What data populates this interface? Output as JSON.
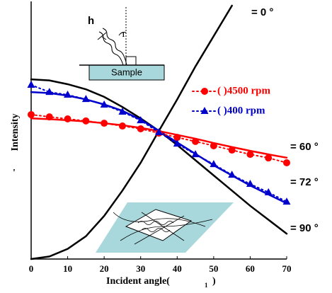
{
  "chart_data": {
    "type": "line",
    "x_label": "Incident angle(",
    "x_label_sub": "1",
    "x_label_end": ")",
    "y_label": "Intensity",
    "y_label_mark": "'",
    "x": [
      0,
      5,
      10,
      15,
      20,
      25,
      30,
      35,
      40,
      45,
      50,
      55,
      60,
      65,
      70
    ],
    "xlim": [
      0,
      70
    ],
    "xticks": [
      0,
      10,
      20,
      30,
      40,
      50,
      60,
      70
    ],
    "ylim": [
      0,
      1
    ],
    "series": [
      {
        "color": "#000000",
        "style": "solid",
        "values": [
          0,
          0.01,
          0.04,
          0.09,
          0.17,
          0.27,
          0.38,
          0.506,
          0.63,
          0.76,
          0.88,
          1.0,
          null,
          null,
          null
        ]
      },
      {
        "color": "#000000",
        "style": "solid",
        "values": [
          0.709,
          0.705,
          0.69,
          0.67,
          0.64,
          0.6,
          0.555,
          0.506,
          0.45,
          0.39,
          0.33,
          0.27,
          0.21,
          0.155,
          0.1
        ]
      },
      {
        "color": "#ff0000",
        "style": "solid",
        "values": [
          0.555,
          0.552,
          0.548,
          0.543,
          0.536,
          0.528,
          0.518,
          0.505,
          0.49,
          0.475,
          0.458,
          0.442,
          0.427,
          0.413,
          0.4
        ]
      },
      {
        "color": "#0000cc",
        "style": "solid",
        "values": [
          0.659,
          0.655,
          0.645,
          0.63,
          0.61,
          0.585,
          0.55,
          0.506,
          0.46,
          0.415,
          0.37,
          0.33,
          0.29,
          0.255,
          0.22
        ]
      },
      {
        "name": "(   )4500 rpm",
        "color": "#ff0000",
        "style": "dotted",
        "marker": "circle",
        "values": [
          0.57,
          0.561,
          0.553,
          0.545,
          0.536,
          0.525,
          0.514,
          0.497,
          0.48,
          0.464,
          0.447,
          0.43,
          0.413,
          0.399,
          0.38
        ]
      },
      {
        "name": "(   )400 rpm",
        "color": "#0000cc",
        "style": "dotted",
        "marker": "triangle",
        "values": [
          0.687,
          0.659,
          0.648,
          0.631,
          0.609,
          0.581,
          0.547,
          0.5,
          0.455,
          0.413,
          0.374,
          0.332,
          0.296,
          0.263,
          0.226
        ]
      }
    ],
    "annotations": [
      "= 0 °",
      "= 60 °",
      "= 72 °",
      "= 90 °",
      "h",
      "1",
      "Sample"
    ]
  }
}
